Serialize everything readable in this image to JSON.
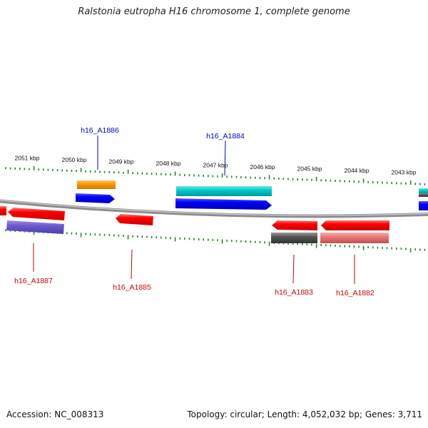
{
  "title": "Ralstonia eutropha H16 chromosome 1, complete genome",
  "footer": {
    "accession": "Accession: NC_008313",
    "summary": "Topology: circular; Length: 4,052,032 bp; Genes: 3,711"
  },
  "ruler": {
    "tick_labels": [
      {
        "kbp": 2051,
        "label": "2051 kbp"
      },
      {
        "kbp": 2050,
        "label": "2050 kbp"
      },
      {
        "kbp": 2049,
        "label": "2049 kbp"
      },
      {
        "kbp": 2048,
        "label": "2048 kbp"
      },
      {
        "kbp": 2047,
        "label": "2047 kbp"
      },
      {
        "kbp": 2046,
        "label": "2046 kbp"
      },
      {
        "kbp": 2045,
        "label": "2045 kbp"
      },
      {
        "kbp": 2044,
        "label": "2044 kbp"
      },
      {
        "kbp": 2043,
        "label": "2043 kbp"
      }
    ]
  },
  "gene_labels": [
    {
      "name": "h16_A1886",
      "strand": "forward",
      "color": "#0000cc"
    },
    {
      "name": "h16_A1884",
      "strand": "forward",
      "color": "#0000cc"
    },
    {
      "name": "h16_A1887",
      "strand": "reverse",
      "color": "#cc0000"
    },
    {
      "name": "h16_A1885",
      "strand": "reverse",
      "color": "#cc0000"
    },
    {
      "name": "h16_A1883",
      "strand": "reverse",
      "color": "#cc0000"
    },
    {
      "name": "h16_A1882",
      "strand": "reverse",
      "color": "#cc0000"
    }
  ],
  "colors": {
    "tick": "#228b22",
    "backbone": "#8c8c8c",
    "forward_cds": "#0000ff",
    "reverse_cds": "#ff0000",
    "orange": "#ff9900",
    "cyan": "#00cccc",
    "purple": "#6a5acd",
    "gray": "#555555",
    "pink": "#e87878"
  }
}
